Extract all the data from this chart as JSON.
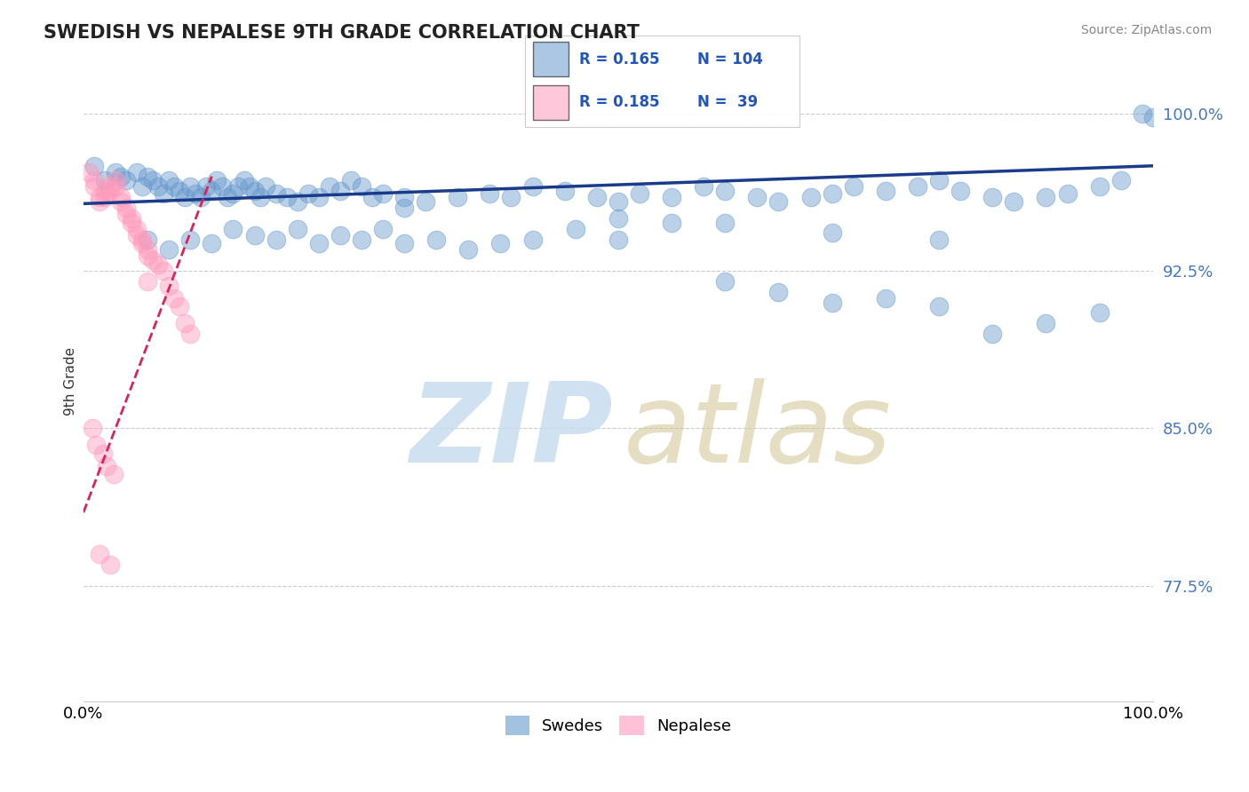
{
  "title": "SWEDISH VS NEPALESE 9TH GRADE CORRELATION CHART",
  "source_text": "Source: ZipAtlas.com",
  "ylabel": "9th Grade",
  "x_min": 0.0,
  "x_max": 1.0,
  "y_min": 0.72,
  "y_max": 1.025,
  "yticks": [
    0.775,
    0.85,
    0.925,
    1.0
  ],
  "ytick_labels": [
    "77.5%",
    "85.0%",
    "92.5%",
    "100.0%"
  ],
  "blue_color": "#6699CC",
  "pink_color": "#FF99BB",
  "blue_line_color": "#1A3A8A",
  "pink_line_color": "#DD2255",
  "watermark_zip": "ZIP",
  "watermark_atlas": "atlas",
  "swedes_x": [
    0.01,
    0.02,
    0.03,
    0.035,
    0.04,
    0.05,
    0.055,
    0.06,
    0.065,
    0.07,
    0.075,
    0.08,
    0.085,
    0.09,
    0.095,
    0.1,
    0.105,
    0.11,
    0.115,
    0.12,
    0.125,
    0.13,
    0.135,
    0.14,
    0.145,
    0.15,
    0.155,
    0.16,
    0.165,
    0.17,
    0.18,
    0.19,
    0.2,
    0.21,
    0.22,
    0.23,
    0.24,
    0.25,
    0.26,
    0.27,
    0.28,
    0.3,
    0.32,
    0.35,
    0.38,
    0.4,
    0.42,
    0.45,
    0.48,
    0.5,
    0.52,
    0.55,
    0.58,
    0.6,
    0.63,
    0.65,
    0.68,
    0.7,
    0.72,
    0.75,
    0.78,
    0.8,
    0.82,
    0.85,
    0.87,
    0.9,
    0.92,
    0.95,
    0.97,
    0.99,
    0.06,
    0.08,
    0.1,
    0.12,
    0.14,
    0.16,
    0.18,
    0.2,
    0.22,
    0.24,
    0.26,
    0.28,
    0.3,
    0.33,
    0.36,
    0.39,
    0.42,
    0.46,
    0.5,
    0.55,
    0.6,
    0.65,
    0.7,
    0.75,
    0.8,
    0.85,
    0.9,
    0.95,
    0.3,
    0.5,
    0.6,
    0.7,
    0.8,
    1.0
  ],
  "swedes_y": [
    0.975,
    0.968,
    0.972,
    0.97,
    0.968,
    0.972,
    0.965,
    0.97,
    0.968,
    0.965,
    0.962,
    0.968,
    0.965,
    0.963,
    0.96,
    0.965,
    0.962,
    0.96,
    0.965,
    0.963,
    0.968,
    0.965,
    0.96,
    0.962,
    0.965,
    0.968,
    0.965,
    0.963,
    0.96,
    0.965,
    0.962,
    0.96,
    0.958,
    0.962,
    0.96,
    0.965,
    0.963,
    0.968,
    0.965,
    0.96,
    0.962,
    0.96,
    0.958,
    0.96,
    0.962,
    0.96,
    0.965,
    0.963,
    0.96,
    0.958,
    0.962,
    0.96,
    0.965,
    0.963,
    0.96,
    0.958,
    0.96,
    0.962,
    0.965,
    0.963,
    0.965,
    0.968,
    0.963,
    0.96,
    0.958,
    0.96,
    0.962,
    0.965,
    0.968,
    1.0,
    0.94,
    0.935,
    0.94,
    0.938,
    0.945,
    0.942,
    0.94,
    0.945,
    0.938,
    0.942,
    0.94,
    0.945,
    0.938,
    0.94,
    0.935,
    0.938,
    0.94,
    0.945,
    0.94,
    0.948,
    0.92,
    0.915,
    0.91,
    0.912,
    0.908,
    0.895,
    0.9,
    0.905,
    0.955,
    0.95,
    0.948,
    0.943,
    0.94,
    0.998
  ],
  "nepalese_x": [
    0.005,
    0.01,
    0.01,
    0.015,
    0.015,
    0.02,
    0.02,
    0.025,
    0.025,
    0.03,
    0.03,
    0.035,
    0.035,
    0.04,
    0.04,
    0.045,
    0.045,
    0.05,
    0.05,
    0.055,
    0.055,
    0.06,
    0.06,
    0.065,
    0.07,
    0.075,
    0.08,
    0.085,
    0.09,
    0.095,
    0.1,
    0.008,
    0.012,
    0.018,
    0.022,
    0.028,
    0.015,
    0.025,
    0.06
  ],
  "nepalese_y": [
    0.972,
    0.968,
    0.965,
    0.96,
    0.958,
    0.963,
    0.96,
    0.965,
    0.963,
    0.968,
    0.965,
    0.96,
    0.958,
    0.955,
    0.952,
    0.95,
    0.948,
    0.945,
    0.942,
    0.94,
    0.938,
    0.935,
    0.932,
    0.93,
    0.928,
    0.925,
    0.918,
    0.912,
    0.908,
    0.9,
    0.895,
    0.85,
    0.842,
    0.838,
    0.832,
    0.828,
    0.79,
    0.785,
    0.92
  ],
  "blue_trend_x0": 0.0,
  "blue_trend_x1": 1.0,
  "blue_trend_y0": 0.957,
  "blue_trend_y1": 0.975,
  "pink_trend_x0": 0.0,
  "pink_trend_x1": 0.12,
  "pink_trend_y0": 0.81,
  "pink_trend_y1": 0.97
}
